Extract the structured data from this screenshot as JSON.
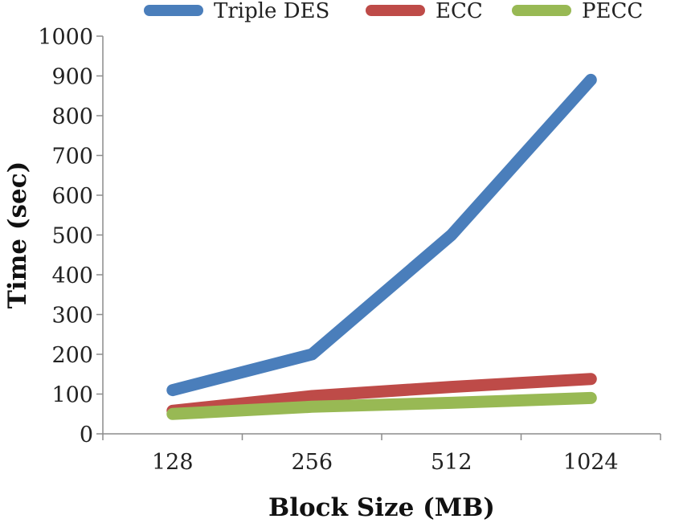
{
  "chart_data": {
    "type": "line",
    "title": "",
    "xlabel": "Block Size (MB)",
    "ylabel": "Time (sec)",
    "categories": [
      "128",
      "256",
      "512",
      "1024"
    ],
    "ylim": [
      0,
      1000
    ],
    "yticks": [
      0,
      100,
      200,
      300,
      400,
      500,
      600,
      700,
      800,
      900,
      1000
    ],
    "grid": false,
    "legend_position": "top",
    "series": [
      {
        "name": "Triple DES",
        "color": "#4a7ebb",
        "values": [
          110,
          200,
          500,
          890
        ]
      },
      {
        "name": "ECC",
        "color": "#be4b48",
        "values": [
          58,
          95,
          118,
          138
        ]
      },
      {
        "name": "PECC",
        "color": "#98b954",
        "values": [
          50,
          68,
          78,
          90
        ]
      }
    ]
  }
}
